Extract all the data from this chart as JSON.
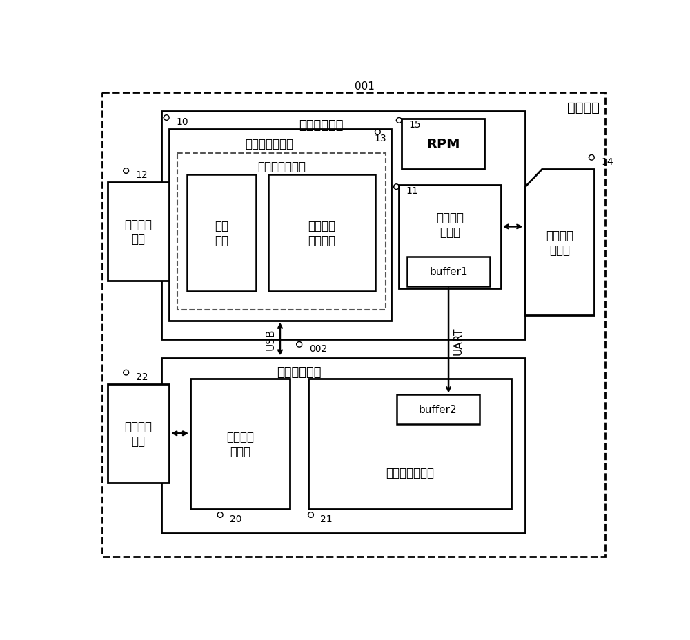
{
  "bg_color": "#ffffff",
  "labels": {
    "mobile_terminal": "移动终端",
    "chip1_label": "第一处理芯片",
    "chip2_label": "第二处理芯片",
    "app_proc1": "第一应用处理器",
    "virtual_sim": "虚拟用户识别卡",
    "storage": "存储\n模块",
    "virtual_os": "虚拟片内\n操作系统",
    "rpm": "RPM",
    "modem1": "第一调制\n解调器",
    "buffer1": "buffer1",
    "sim_card": "实体用户\n识别卡",
    "rf1": "第一射频\n模块",
    "app_proc2": "第二应用\n处理器",
    "modem2": "第二调制解调器",
    "buffer2": "buffer2",
    "rf2": "第二射频\n模块",
    "usb_label": "USB",
    "uart_label": "UART",
    "num_001": "001",
    "num_10": "10",
    "num_11": "11",
    "num_12": "12",
    "num_13": "13",
    "num_14": "14",
    "num_15": "15",
    "num_20": "20",
    "num_21": "21",
    "num_22": "22",
    "num_002": "002"
  }
}
